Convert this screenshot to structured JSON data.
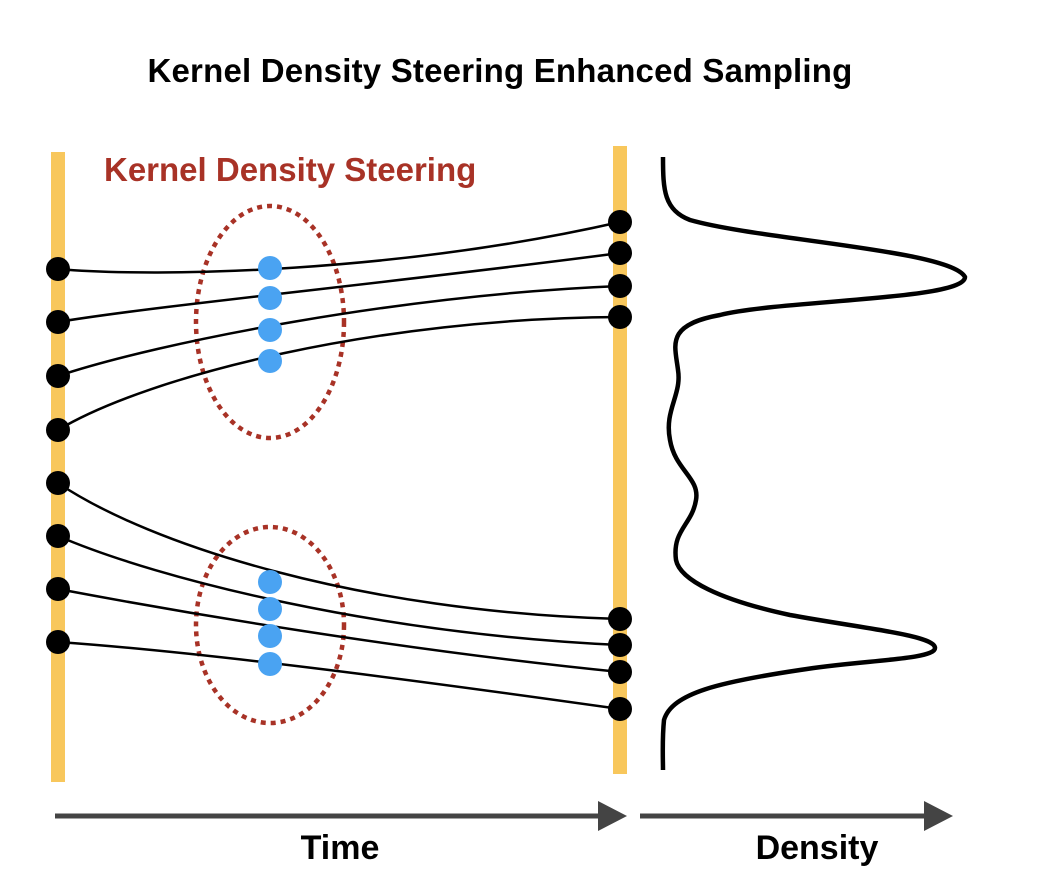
{
  "title": "Kernel Density Steering Enhanced Sampling",
  "steering_label": "Kernel Density Steering",
  "time_label": "Time",
  "density_label": "Density",
  "colors": {
    "rail": "#f8c75c",
    "particle": "#000000",
    "steered_particle": "#4aa3f2",
    "steering": "#a83226",
    "arrow": "#444444",
    "density_curve": "#000000"
  }
}
